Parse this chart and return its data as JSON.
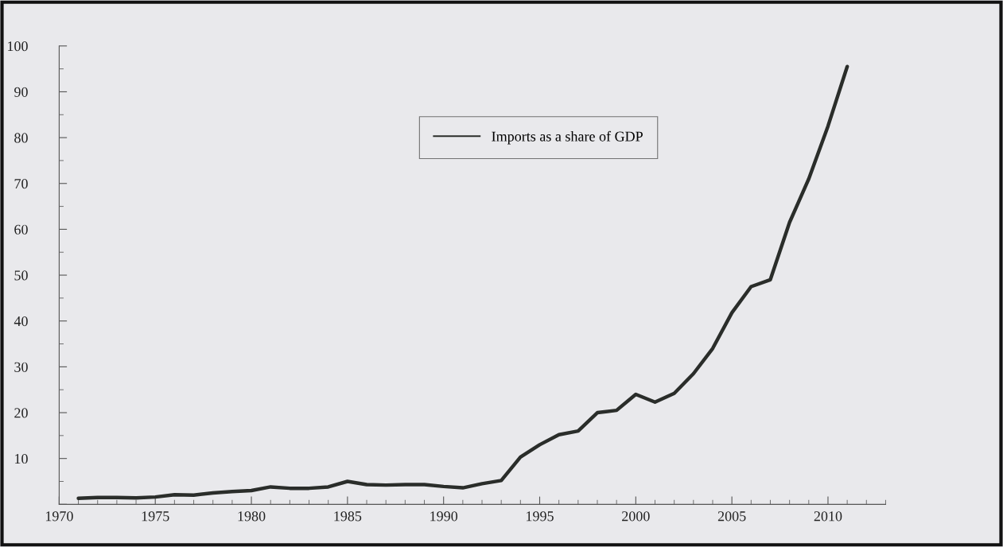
{
  "chart_data": {
    "type": "line",
    "x": [
      1971,
      1972,
      1973,
      1974,
      1975,
      1976,
      1977,
      1978,
      1979,
      1980,
      1981,
      1982,
      1983,
      1984,
      1985,
      1986,
      1987,
      1988,
      1989,
      1990,
      1991,
      1992,
      1993,
      1994,
      1995,
      1996,
      1997,
      1998,
      1999,
      2000,
      2001,
      2002,
      2003,
      2004,
      2005,
      2006,
      2007,
      2008,
      2009,
      2010,
      2011
    ],
    "series": [
      {
        "name": "Imports as a share of GDP",
        "color": "#2a2d2a",
        "values": [
          1.3,
          1.5,
          1.5,
          1.4,
          1.6,
          2.1,
          2.0,
          2.5,
          2.8,
          3.0,
          3.8,
          3.5,
          3.5,
          3.8,
          5.0,
          4.3,
          4.2,
          4.3,
          4.3,
          3.9,
          3.6,
          4.5,
          5.2,
          10.3,
          13.0,
          15.2,
          16.0,
          20.0,
          20.5,
          24.0,
          22.3,
          24.2,
          28.5,
          34.0,
          41.8,
          47.5,
          49.0,
          61.5,
          71.0,
          82.5,
          95.5
        ]
      }
    ],
    "xlim": [
      1970,
      2013
    ],
    "xticks": [
      1970,
      1975,
      1980,
      1985,
      1990,
      1995,
      2000,
      2005,
      2010
    ],
    "ylim": [
      0,
      100
    ],
    "yticks": [
      {
        "value": 0,
        "label": null
      },
      10,
      20,
      30,
      40,
      50,
      60,
      70,
      80,
      90,
      100
    ],
    "grid": false,
    "legend": "top",
    "marker": "none",
    "line_style": "solid"
  }
}
